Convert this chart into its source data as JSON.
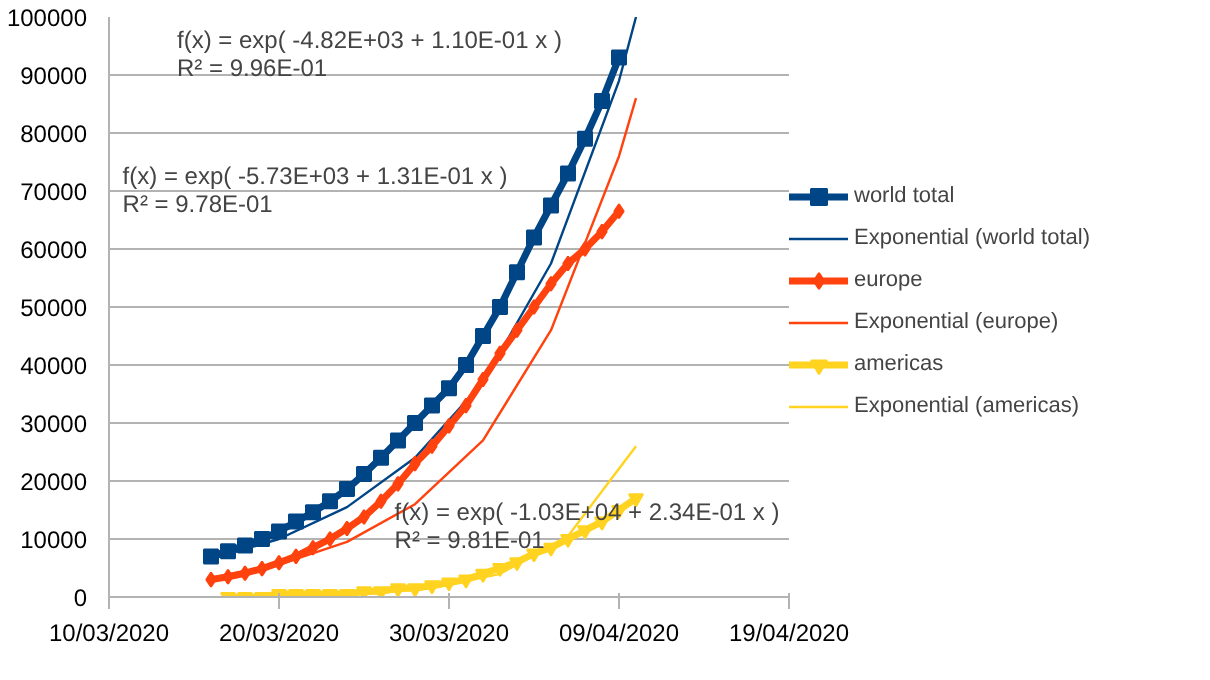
{
  "chart_data": {
    "type": "line",
    "xlim": [
      "2020-03-10",
      "2020-04-19"
    ],
    "ylim": [
      0,
      100000
    ],
    "xticks": [
      {
        "value": "2020-03-10",
        "label": "10/03/2020"
      },
      {
        "value": "2020-03-20",
        "label": "20/03/2020"
      },
      {
        "value": "2020-03-30",
        "label": "30/03/2020"
      },
      {
        "value": "2020-04-09",
        "label": "09/04/2020"
      },
      {
        "value": "2020-04-19",
        "label": "19/04/2020"
      }
    ],
    "yticks": [
      0,
      10000,
      20000,
      30000,
      40000,
      50000,
      60000,
      70000,
      80000,
      90000,
      100000
    ],
    "grid": "y",
    "legend": "right",
    "x": [
      "2020-03-16",
      "2020-03-17",
      "2020-03-18",
      "2020-03-19",
      "2020-03-20",
      "2020-03-21",
      "2020-03-22",
      "2020-03-23",
      "2020-03-24",
      "2020-03-25",
      "2020-03-26",
      "2020-03-27",
      "2020-03-28",
      "2020-03-29",
      "2020-03-30",
      "2020-03-31",
      "2020-04-01",
      "2020-04-02",
      "2020-04-03",
      "2020-04-04",
      "2020-04-05",
      "2020-04-06",
      "2020-04-07",
      "2020-04-08",
      "2020-04-09"
    ],
    "series": [
      {
        "name": "world total",
        "color": "#004586",
        "marker": "square",
        "values": [
          7000,
          7900,
          8900,
          10000,
          11300,
          13000,
          14600,
          16500,
          18600,
          21200,
          24000,
          27000,
          30000,
          33000,
          36000,
          40000,
          45000,
          50000,
          56000,
          62000,
          67500,
          73000,
          79000,
          85500,
          93000
        ]
      },
      {
        "name": "Exponential (world total)",
        "type": "line",
        "color": "#004586",
        "marker": "none",
        "x": [
          "2020-03-16",
          "2020-03-20",
          "2020-03-24",
          "2020-03-28",
          "2020-04-01",
          "2020-04-05",
          "2020-04-09",
          "2020-04-10"
        ],
        "values": [
          6500,
          10000,
          15500,
          24000,
          37000,
          57500,
          89000,
          100000
        ]
      },
      {
        "name": "europe",
        "color": "#ff420e",
        "marker": "diamond",
        "values": [
          3000,
          3500,
          4100,
          4900,
          5900,
          7000,
          8500,
          10000,
          11800,
          13800,
          16500,
          19500,
          23000,
          26000,
          29500,
          33000,
          37500,
          42000,
          46000,
          50000,
          54000,
          57500,
          60000,
          63000,
          66500
        ]
      },
      {
        "name": "Exponential (europe)",
        "type": "line",
        "color": "#ff420e",
        "marker": "none",
        "x": [
          "2020-03-16",
          "2020-03-20",
          "2020-03-24",
          "2020-03-28",
          "2020-04-01",
          "2020-04-05",
          "2020-04-09",
          "2020-04-10"
        ],
        "values": [
          3300,
          5600,
          9500,
          16000,
          27000,
          46000,
          76000,
          86000
        ]
      },
      {
        "name": "americas",
        "color": "#ffd320",
        "marker": "triangle",
        "x": [
          "2020-03-17",
          "2020-03-18",
          "2020-03-19",
          "2020-03-20",
          "2020-03-21",
          "2020-03-22",
          "2020-03-23",
          "2020-03-24",
          "2020-03-25",
          "2020-03-26",
          "2020-03-27",
          "2020-03-28",
          "2020-03-29",
          "2020-03-30",
          "2020-03-31",
          "2020-04-01",
          "2020-04-02",
          "2020-04-03",
          "2020-04-04",
          "2020-04-05",
          "2020-04-06",
          "2020-04-07",
          "2020-04-08",
          "2020-04-09",
          "2020-04-10"
        ],
        "values": [
          0,
          0,
          0,
          500,
          500,
          500,
          500,
          500,
          1000,
          1000,
          1500,
          1500,
          2000,
          2500,
          3000,
          4000,
          5000,
          6000,
          7500,
          8500,
          10000,
          11500,
          13000,
          15000,
          17000
        ]
      },
      {
        "name": "Exponential (americas)",
        "type": "line",
        "color": "#ffd320",
        "marker": "none",
        "x": [
          "2020-03-17",
          "2020-03-21",
          "2020-03-25",
          "2020-03-29",
          "2020-04-02",
          "2020-04-06",
          "2020-04-10"
        ],
        "values": [
          0,
          500,
          500,
          1500,
          4000,
          10500,
          26000
        ]
      }
    ],
    "annotations": [
      "f(x) = exp( -4.82E+03 + 1.10E-01 x )\nR² = 9.96E-01",
      "f(x) = exp( -5.73E+03 + 1.31E-01 x )\nR² = 9.78E-01",
      "f(x) = exp( -1.03E+04 + 2.34E-01 x )\nR² = 9.81E-01"
    ]
  }
}
